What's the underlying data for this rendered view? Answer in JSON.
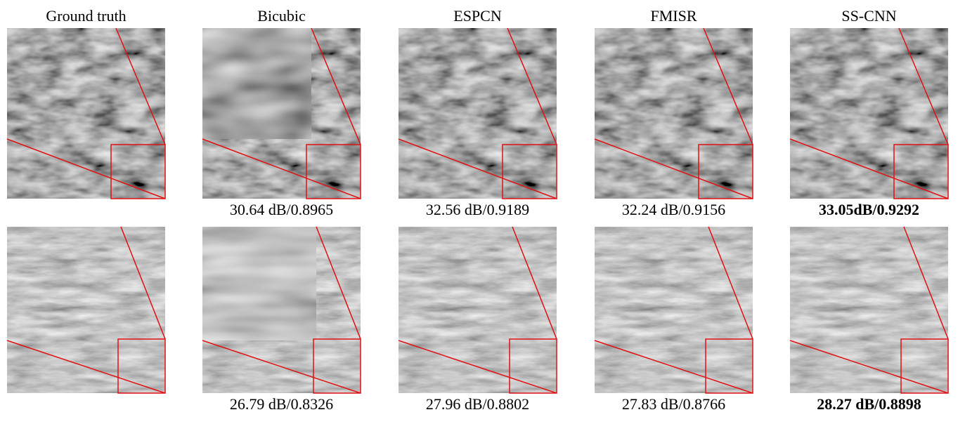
{
  "figure": {
    "columns": [
      "Ground truth",
      "Bicubic",
      "ESPCN",
      "FMISR",
      "SS-CNN"
    ],
    "rows": [
      {
        "captions": [
          "30.64 dB/0.8965",
          "32.56 dB/0.9189",
          "32.24 dB/0.9156",
          "33.05dB/0.9292"
        ],
        "bold_caption": 3
      },
      {
        "captions": [
          "26.79 dB/0.8326",
          "27.96 dB/0.8802",
          "27.83 dB/0.8766",
          "28.27 dB/0.8898"
        ],
        "bold_caption": 3
      }
    ]
  }
}
